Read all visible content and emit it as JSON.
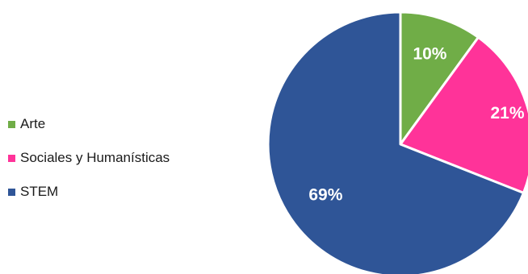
{
  "chart_data": {
    "type": "pie",
    "title": "",
    "categories": [
      "Arte",
      "Sociales y Humanísticas",
      "STEM"
    ],
    "values": [
      10,
      21,
      69
    ],
    "labels": [
      "10%",
      "21%",
      "69%"
    ],
    "colors": [
      "#70ad47",
      "#ff3399",
      "#2f5597"
    ],
    "legend_position": "left"
  },
  "legend": {
    "items": [
      {
        "label": "Arte",
        "color": "#70ad47"
      },
      {
        "label": "Sociales y Humanísticas",
        "color": "#ff3399"
      },
      {
        "label": "STEM",
        "color": "#2f5597"
      }
    ]
  }
}
